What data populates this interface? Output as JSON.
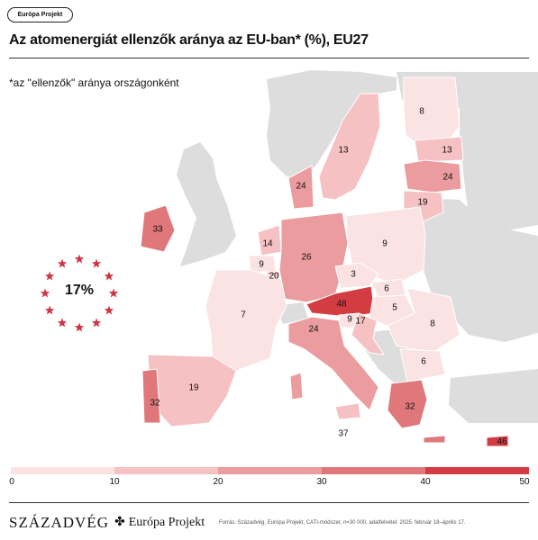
{
  "badge": "Európa Projekt",
  "title": "Az atomenergiát ellenzők aránya az EU-ban* (%), EU27",
  "subtitle": "*az \"ellenzők\" aránya országonként",
  "eu_average": "17%",
  "colors": {
    "scale": [
      "#fbe3e3",
      "#f5c1c2",
      "#ea9c9e",
      "#e0787b",
      "#d43c43"
    ],
    "non_eu": "#dddddd",
    "accent": "#cf3440"
  },
  "legend": {
    "ticks": [
      "0",
      "10",
      "20",
      "30",
      "40",
      "50"
    ]
  },
  "chart_data": {
    "type": "choropleth",
    "values": [
      {
        "label": "8",
        "value": 8
      },
      {
        "label": "13",
        "value": 13
      },
      {
        "label": "13",
        "value": 13
      },
      {
        "label": "24",
        "value": 24
      },
      {
        "label": "24",
        "value": 24
      },
      {
        "label": "19",
        "value": 19
      },
      {
        "label": "33",
        "value": 33
      },
      {
        "label": "14",
        "value": 14
      },
      {
        "label": "9",
        "value": 9
      },
      {
        "label": "20",
        "value": 20
      },
      {
        "label": "26",
        "value": 26
      },
      {
        "label": "9",
        "value": 9
      },
      {
        "label": "3",
        "value": 3
      },
      {
        "label": "6",
        "value": 6
      },
      {
        "label": "48",
        "value": 48
      },
      {
        "label": "5",
        "value": 5
      },
      {
        "label": "7",
        "value": 7
      },
      {
        "label": "9",
        "value": 9
      },
      {
        "label": "17",
        "value": 17
      },
      {
        "label": "24",
        "value": 24
      },
      {
        "label": "8",
        "value": 8
      },
      {
        "label": "6",
        "value": 6
      },
      {
        "label": "19",
        "value": 19
      },
      {
        "label": "32",
        "value": 32
      },
      {
        "label": "32",
        "value": 32
      },
      {
        "label": "37",
        "value": 37
      },
      {
        "label": "46",
        "value": 46
      }
    ],
    "scale_range": [
      0,
      50
    ]
  },
  "footer": {
    "brand1": "SZÁZADVÉG",
    "brand2": "Európa Projekt",
    "source": "Forrás: Századvég, Európa Projekt, CATI-módszer, n=30 000, adatfelvétel: 2025. február 18–április 17."
  }
}
